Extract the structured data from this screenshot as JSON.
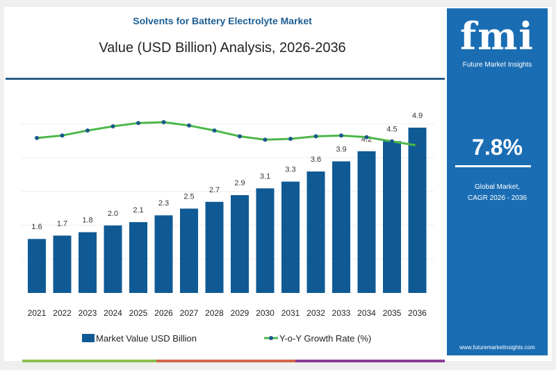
{
  "header": {
    "title": "Solvents for Battery Electrolyte Market",
    "subtitle": "Value (USD Billion) Analysis, 2026-2036"
  },
  "panel": {
    "logo_text": "fmi",
    "logo_subtext": "Future Market Insights",
    "cagr_value": "7.8%",
    "cagr_label_line1": "Global Market,",
    "cagr_label_line2": "CAGR 2026 - 2036",
    "website": "www.futuremarketinsights.com",
    "background_color": "#1b6db3"
  },
  "chart_data": {
    "type": "bar",
    "title": "Value (USD Billion) Analysis, 2026-2036",
    "categories": [
      "2021",
      "2022",
      "2023",
      "2024",
      "2025",
      "2026",
      "2027",
      "2028",
      "2029",
      "2030",
      "2031",
      "2032",
      "2033",
      "2034",
      "2035",
      "2036"
    ],
    "series": [
      {
        "name": "Market Value USD Billion",
        "type": "bar",
        "color": "#0f5a94",
        "values": [
          1.6,
          1.7,
          1.8,
          2.0,
          2.1,
          2.3,
          2.5,
          2.7,
          2.9,
          3.1,
          3.3,
          3.6,
          3.9,
          4.2,
          4.5,
          4.9
        ],
        "data_labels": [
          "1.6",
          "1.7",
          "1.8",
          "2.0",
          "2.1",
          "2.3",
          "2.5",
          "2.7",
          "2.9",
          "3.1",
          "3.3",
          "3.6",
          "3.9",
          "4.2",
          "4.5",
          "4.9"
        ]
      },
      {
        "name": "Y-o-Y Growth Rate (%)",
        "type": "line",
        "color": "#4cb848",
        "marker_color": "#1a5a8a",
        "values": [
          6.0,
          6.3,
          6.9,
          7.4,
          7.8,
          7.9,
          7.5,
          6.9,
          6.2,
          5.8,
          5.9,
          6.2,
          6.3,
          6.1,
          5.6,
          5.1
        ]
      }
    ],
    "ylim": [
      0,
      5
    ],
    "grid": true,
    "legend_position": "bottom"
  },
  "footer_strip_colors": [
    "#8dc04f",
    "#d3674a",
    "#8a3d96"
  ]
}
